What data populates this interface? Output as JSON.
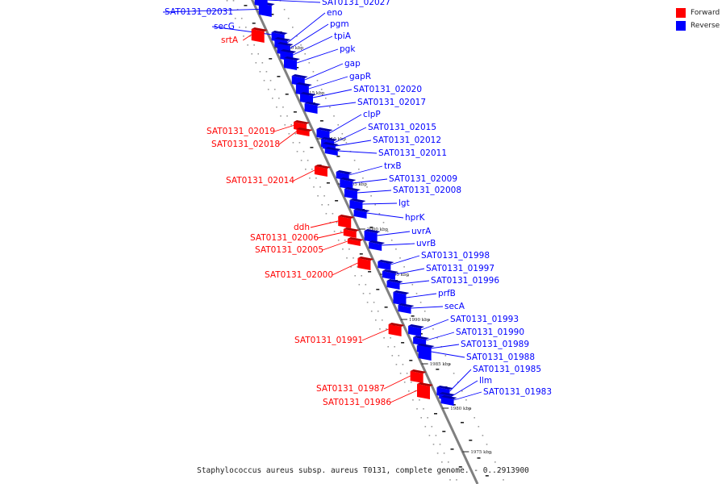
{
  "legend": [
    {
      "label": "Forward",
      "color": "#ff0000"
    },
    {
      "label": "Reverse",
      "color": "#0000ff"
    }
  ],
  "caption": "Staphylococcus aureus subsp. aureus T0131, complete genome. - 0..2913900",
  "colors": {
    "forward": "#ff0000",
    "reverse": "#0000ff",
    "backbone": "#808080"
  },
  "ticks": [
    "2020 kbp",
    "2015 kbp",
    "2010 kbp",
    "2005 kbp",
    "2000 kbp",
    "1995 kbp",
    "1990 kbp",
    "1985 kbp",
    "1980 kbp",
    "1975 kbp"
  ],
  "genes": [
    {
      "label": "SAT0131_02031",
      "strand": "reverse"
    },
    {
      "label": "secG",
      "strand": "reverse"
    },
    {
      "label": "srtA",
      "strand": "forward"
    },
    {
      "label": "SAT0131_02027",
      "strand": "reverse"
    },
    {
      "label": "eno",
      "strand": "reverse"
    },
    {
      "label": "pgm",
      "strand": "reverse"
    },
    {
      "label": "tpiA",
      "strand": "reverse"
    },
    {
      "label": "pgk",
      "strand": "reverse"
    },
    {
      "label": "gap",
      "strand": "reverse"
    },
    {
      "label": "gapR",
      "strand": "reverse"
    },
    {
      "label": "SAT0131_02020",
      "strand": "reverse"
    },
    {
      "label": "SAT0131_02017",
      "strand": "reverse"
    },
    {
      "label": "clpP",
      "strand": "reverse"
    },
    {
      "label": "SAT0131_02019",
      "strand": "forward"
    },
    {
      "label": "SAT0131_02018",
      "strand": "forward"
    },
    {
      "label": "SAT0131_02015",
      "strand": "reverse"
    },
    {
      "label": "SAT0131_02012",
      "strand": "reverse"
    },
    {
      "label": "SAT0131_02011",
      "strand": "reverse"
    },
    {
      "label": "trxB",
      "strand": "reverse"
    },
    {
      "label": "SAT0131_02014",
      "strand": "forward"
    },
    {
      "label": "SAT0131_02009",
      "strand": "reverse"
    },
    {
      "label": "SAT0131_02008",
      "strand": "reverse"
    },
    {
      "label": "lgt",
      "strand": "reverse"
    },
    {
      "label": "hprK",
      "strand": "reverse"
    },
    {
      "label": "ddh",
      "strand": "forward"
    },
    {
      "label": "uvrA",
      "strand": "reverse"
    },
    {
      "label": "SAT0131_02006",
      "strand": "forward"
    },
    {
      "label": "uvrB",
      "strand": "reverse"
    },
    {
      "label": "SAT0131_02005",
      "strand": "forward"
    },
    {
      "label": "SAT0131_01998",
      "strand": "reverse"
    },
    {
      "label": "SAT0131_01997",
      "strand": "reverse"
    },
    {
      "label": "SAT0131_02000",
      "strand": "forward"
    },
    {
      "label": "SAT0131_01996",
      "strand": "reverse"
    },
    {
      "label": "prfB",
      "strand": "reverse"
    },
    {
      "label": "secA",
      "strand": "reverse"
    },
    {
      "label": "SAT0131_01993",
      "strand": "reverse"
    },
    {
      "label": "SAT0131_01990",
      "strand": "reverse"
    },
    {
      "label": "SAT0131_01991",
      "strand": "forward"
    },
    {
      "label": "SAT0131_01989",
      "strand": "reverse"
    },
    {
      "label": "SAT0131_01988",
      "strand": "reverse"
    },
    {
      "label": "SAT0131_01985",
      "strand": "reverse"
    },
    {
      "label": "llm",
      "strand": "reverse"
    },
    {
      "label": "SAT0131_01987",
      "strand": "forward"
    },
    {
      "label": "SAT0131_01983",
      "strand": "reverse"
    },
    {
      "label": "SAT0131_01986",
      "strand": "forward"
    }
  ]
}
